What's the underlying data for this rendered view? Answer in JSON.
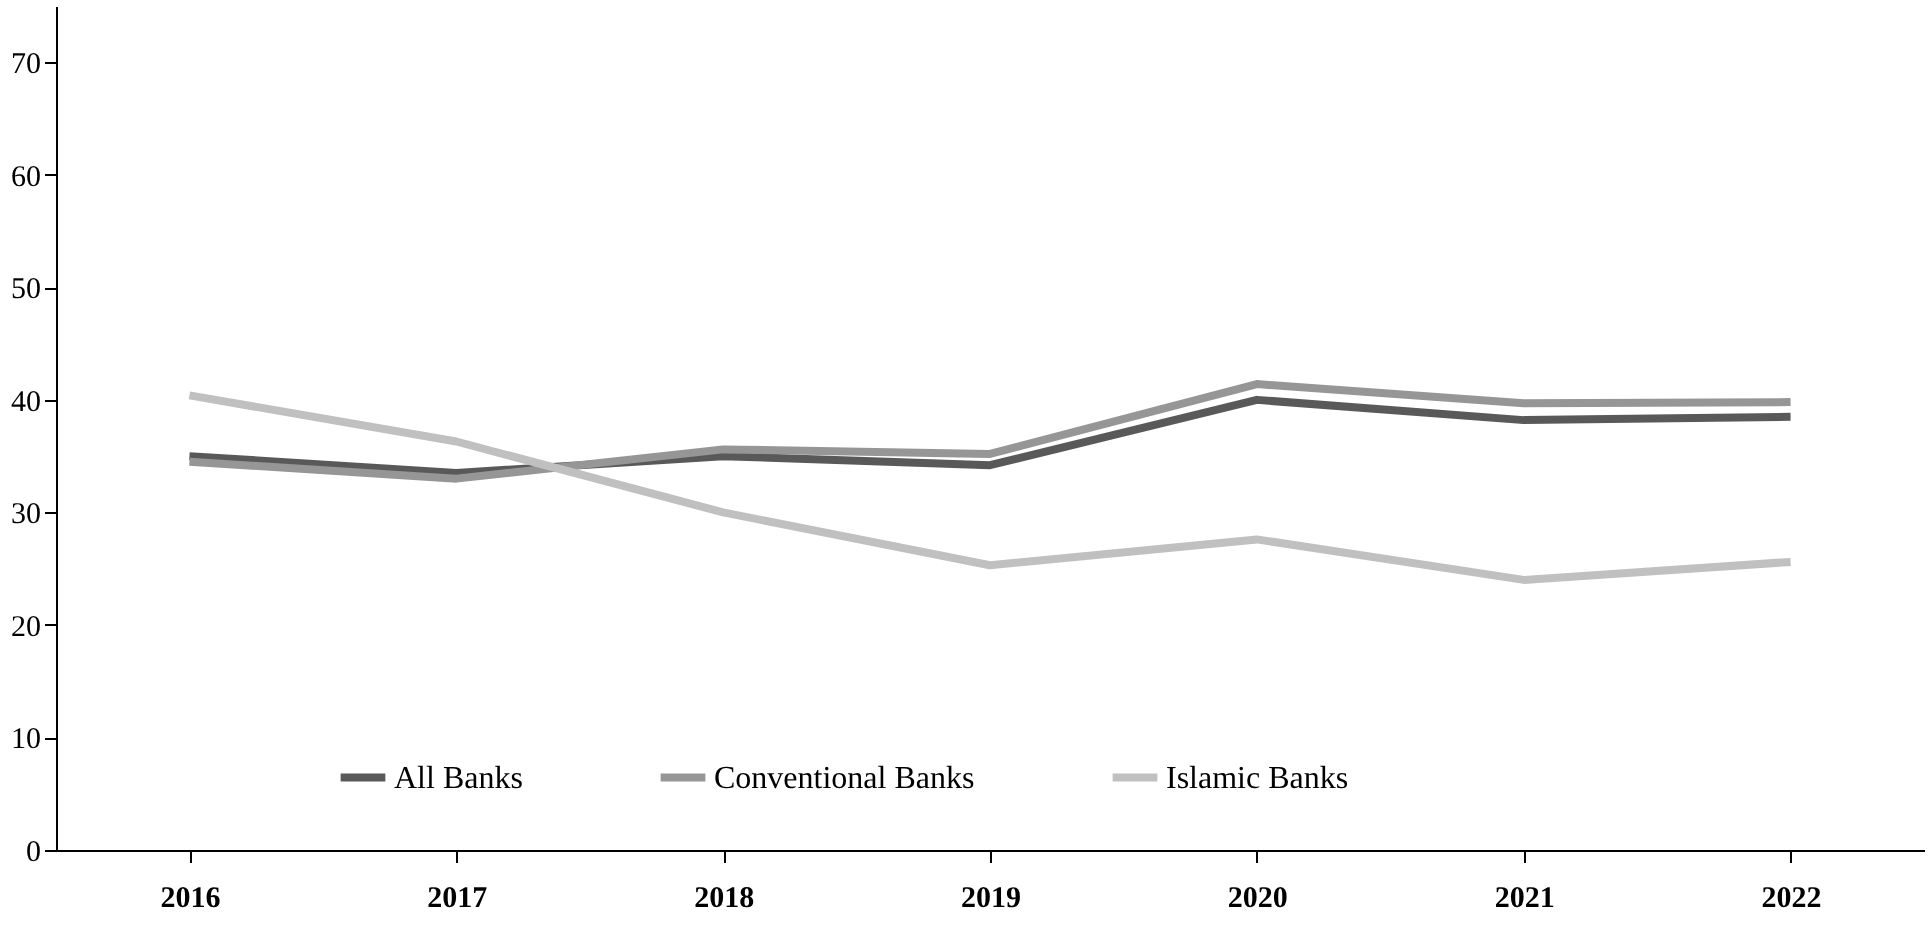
{
  "chart_data": {
    "type": "line",
    "categories": [
      "2016",
      "2017",
      "2018",
      "2019",
      "2020",
      "2021",
      "2022"
    ],
    "series": [
      {
        "name": "All Banks",
        "color": "#595959",
        "values": [
          35.0,
          33.5,
          35.0,
          34.2,
          40.0,
          38.2,
          38.5
        ]
      },
      {
        "name": "Conventional Banks",
        "color": "#969696",
        "values": [
          34.5,
          33.0,
          35.6,
          35.2,
          41.4,
          39.7,
          39.8
        ]
      },
      {
        "name": "Islamic Banks",
        "color": "#c0c0c0",
        "values": [
          40.4,
          36.3,
          30.0,
          25.3,
          27.6,
          24.0,
          25.6
        ]
      }
    ],
    "ylim": [
      0,
      75
    ],
    "yticks": [
      0,
      10,
      20,
      30,
      40,
      50,
      60,
      70
    ],
    "grid": false,
    "legend": "bottom",
    "line_style": "solid",
    "marker": "none"
  }
}
